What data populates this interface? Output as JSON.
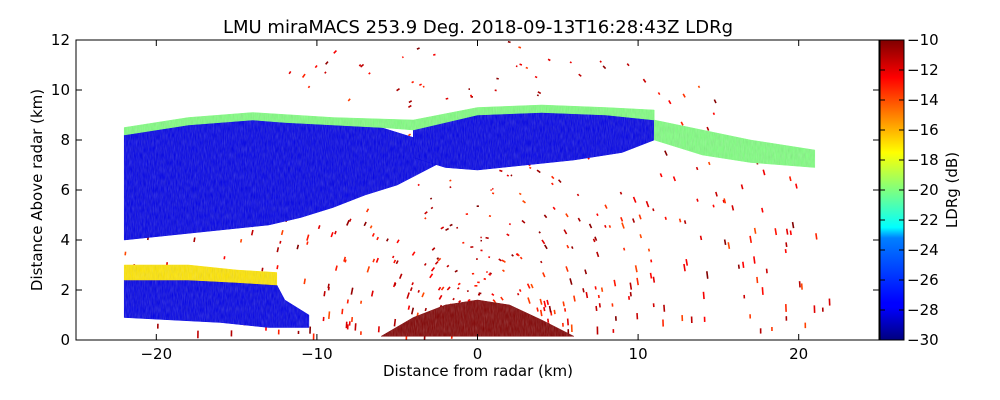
{
  "chart_data": {
    "type": "heatmap",
    "title": "LMU miraMACS 253.9 Deg. 2018-09-13T16:28:43Z  LDRg",
    "xlabel": "Distance from radar (km)",
    "ylabel": "Distance Above radar  (km)",
    "xlim": [
      -25,
      25
    ],
    "ylim": [
      0,
      12
    ],
    "x_ticks": [
      -20,
      -10,
      0,
      10,
      20
    ],
    "x_tick_labels": [
      "−20",
      "−10",
      "0",
      "10",
      "20"
    ],
    "y_ticks": [
      0,
      2,
      4,
      6,
      8,
      10,
      12
    ],
    "y_tick_labels": [
      "0",
      "2",
      "4",
      "6",
      "8",
      "10",
      "12"
    ],
    "colorbar": {
      "label": "LDRg (dB)",
      "range": [
        -30,
        -10
      ],
      "ticks": [
        -30,
        -28,
        -26,
        -24,
        -22,
        -20,
        -18,
        -16,
        -14,
        -12,
        -10
      ],
      "tick_labels": [
        "−30",
        "−28",
        "−26",
        "−24",
        "−22",
        "−20",
        "−18",
        "−16",
        "−14",
        "−12",
        "−10"
      ],
      "colormap": "jet"
    },
    "regions": [
      {
        "name": "main-cloud-left",
        "polygon": [
          [
            -22,
            5.5
          ],
          [
            -22,
            8.2
          ],
          [
            -18,
            8.6
          ],
          [
            -14,
            8.8
          ],
          [
            -12,
            8.7
          ],
          [
            -9,
            8.6
          ],
          [
            -6,
            8.5
          ],
          [
            -4,
            8.1
          ],
          [
            -2,
            7.2
          ],
          [
            -5,
            6.2
          ],
          [
            -7,
            5.8
          ],
          [
            -9,
            5.3
          ],
          [
            -11,
            4.9
          ],
          [
            -13,
            4.6
          ],
          [
            -16,
            4.4
          ],
          [
            -19,
            4.2
          ],
          [
            -22,
            4.0
          ]
        ],
        "value": -28
      },
      {
        "name": "main-cloud-right",
        "polygon": [
          [
            -4,
            8.4
          ],
          [
            0,
            9.0
          ],
          [
            4,
            9.1
          ],
          [
            8,
            9.0
          ],
          [
            11,
            8.8
          ],
          [
            11,
            8.0
          ],
          [
            9,
            7.5
          ],
          [
            6,
            7.2
          ],
          [
            3,
            7.0
          ],
          [
            0,
            6.8
          ],
          [
            -2,
            6.9
          ],
          [
            -4,
            7.3
          ]
        ],
        "value": -28
      },
      {
        "name": "lower-cloud-band",
        "polygon": [
          [
            -22,
            0.9
          ],
          [
            -22,
            2.4
          ],
          [
            -18,
            2.4
          ],
          [
            -15,
            2.3
          ],
          [
            -12.5,
            2.2
          ],
          [
            -12,
            1.6
          ],
          [
            -10.5,
            1.0
          ],
          [
            -10.5,
            0.5
          ],
          [
            -13,
            0.5
          ],
          [
            -16,
            0.7
          ]
        ],
        "value": -28
      },
      {
        "name": "cloud-top-edge",
        "polygon": [
          [
            -22,
            8.2
          ],
          [
            -18,
            8.6
          ],
          [
            -14,
            8.8
          ],
          [
            -12,
            8.7
          ],
          [
            -9,
            8.6
          ],
          [
            -6,
            8.5
          ],
          [
            -4,
            8.4
          ],
          [
            0,
            9.0
          ],
          [
            4,
            9.1
          ],
          [
            8,
            9.0
          ],
          [
            11,
            8.8
          ],
          [
            11,
            9.2
          ],
          [
            8,
            9.3
          ],
          [
            4,
            9.4
          ],
          [
            0,
            9.3
          ],
          [
            -4,
            8.8
          ],
          [
            -9,
            8.9
          ],
          [
            -14,
            9.1
          ],
          [
            -18,
            8.9
          ],
          [
            -22,
            8.5
          ]
        ],
        "value": -20
      },
      {
        "name": "melting-layer",
        "polygon": [
          [
            -22,
            2.4
          ],
          [
            -22,
            3.0
          ],
          [
            -18,
            3.0
          ],
          [
            -15,
            2.8
          ],
          [
            -12.5,
            2.7
          ],
          [
            -12.5,
            2.2
          ],
          [
            -15,
            2.3
          ],
          [
            -18,
            2.4
          ]
        ],
        "value": -17
      },
      {
        "name": "anvil-extension",
        "polygon": [
          [
            11,
            8.0
          ],
          [
            11,
            8.8
          ],
          [
            14,
            8.4
          ],
          [
            17,
            8.0
          ],
          [
            21,
            7.6
          ],
          [
            21,
            6.9
          ],
          [
            17,
            7.1
          ],
          [
            14,
            7.4
          ]
        ],
        "value": -20
      },
      {
        "name": "near-radar-clutter",
        "polygon": [
          [
            -6,
            0.15
          ],
          [
            6,
            0.15
          ],
          [
            4,
            0.8
          ],
          [
            2,
            1.4
          ],
          [
            0,
            1.6
          ],
          [
            -2,
            1.4
          ],
          [
            -4,
            0.9
          ]
        ],
        "value": -10
      }
    ]
  }
}
